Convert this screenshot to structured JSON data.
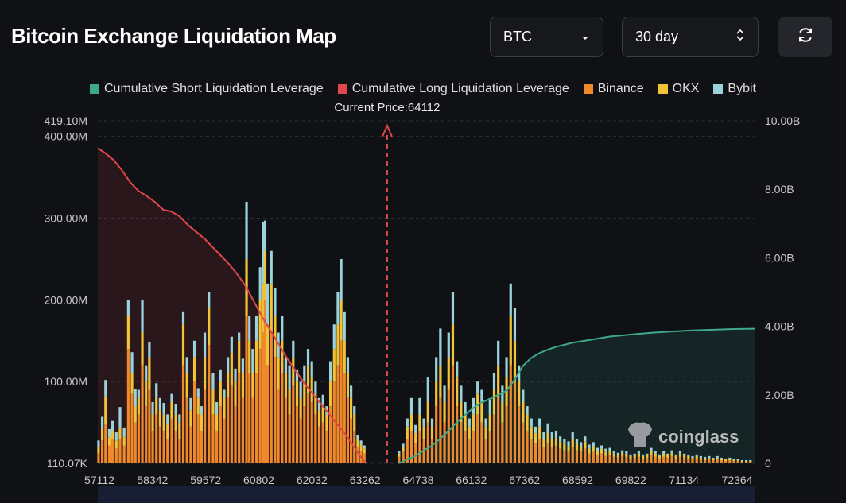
{
  "header": {
    "title": "Bitcoin Exchange Liquidation Map"
  },
  "controls": {
    "coin_value": "BTC",
    "range_value": "30 day",
    "coin_icon": "chevron-down-icon",
    "range_icon": "up-down-arrows-icon",
    "refresh_icon": "refresh-icon"
  },
  "watermark": "coinglass",
  "colors": {
    "short": "#3ea88f",
    "long": "#e0474c",
    "binance": "#f0892a",
    "okx": "#f2c237",
    "bybit": "#9ad3dc",
    "background": "#101114"
  },
  "chart_data": {
    "type": "bar",
    "legend": [
      "Cumulative Short Liquidation Leverage",
      "Cumulative Long Liquidation Leverage",
      "Binance",
      "OKX",
      "Bybit"
    ],
    "legend_position": "top-center",
    "current_price_label": "Current Price:64112",
    "current_price": 64112,
    "x_tick_labels": [
      "57112",
      "58342",
      "59572",
      "60802",
      "62032",
      "63262",
      "64738",
      "66132",
      "67362",
      "68592",
      "69822",
      "71134",
      "72364"
    ],
    "xlim": [
      57112,
      73000
    ],
    "y_left_tick_labels": [
      "419.10M",
      "400.00M",
      "300.00M",
      "200.00M",
      "100.00M",
      "110.07K"
    ],
    "y_left_ticks": [
      419.1,
      400,
      300,
      200,
      100,
      0.11
    ],
    "y_left_range_M": [
      0.11,
      419.1
    ],
    "y_right_tick_labels": [
      "10.00B",
      "8.00B",
      "6.00B",
      "4.00B",
      "2.00B",
      "0"
    ],
    "y_right_ticks": [
      10,
      8,
      6,
      4,
      2,
      0
    ],
    "y_right_range_B": [
      0,
      10
    ],
    "grid": "horizontal-dashed",
    "exchange_bars_M": [
      [
        57130,
        12,
        8,
        8
      ],
      [
        57220,
        28,
        14,
        15
      ],
      [
        57300,
        48,
        34,
        20
      ],
      [
        57390,
        22,
        10,
        10
      ],
      [
        57470,
        30,
        10,
        12
      ],
      [
        57560,
        18,
        10,
        10
      ],
      [
        57650,
        30,
        14,
        25
      ],
      [
        57750,
        22,
        10,
        12
      ],
      [
        57850,
        140,
        40,
        20
      ],
      [
        57940,
        85,
        25,
        26
      ],
      [
        58020,
        50,
        20,
        21
      ],
      [
        58100,
        60,
        20,
        10
      ],
      [
        58190,
        120,
        40,
        40
      ],
      [
        58280,
        70,
        30,
        20
      ],
      [
        58360,
        90,
        40,
        18
      ],
      [
        58440,
        40,
        20,
        15
      ],
      [
        58530,
        60,
        20,
        18
      ],
      [
        58620,
        45,
        20,
        15
      ],
      [
        58710,
        40,
        20,
        14
      ],
      [
        58800,
        30,
        18,
        12
      ],
      [
        58900,
        55,
        20,
        10
      ],
      [
        59000,
        40,
        20,
        12
      ],
      [
        59090,
        30,
        20,
        10
      ],
      [
        59180,
        120,
        50,
        15
      ],
      [
        59270,
        80,
        30,
        20
      ],
      [
        59360,
        45,
        20,
        15
      ],
      [
        59450,
        100,
        30,
        20
      ],
      [
        59540,
        60,
        20,
        12
      ],
      [
        59620,
        40,
        20,
        10
      ],
      [
        59700,
        90,
        40,
        30
      ],
      [
        59800,
        145,
        45,
        20
      ],
      [
        59900,
        60,
        30,
        20
      ],
      [
        59990,
        40,
        20,
        15
      ],
      [
        60080,
        70,
        30,
        15
      ],
      [
        60170,
        55,
        25,
        10
      ],
      [
        60260,
        80,
        30,
        20
      ],
      [
        60350,
        95,
        40,
        20
      ],
      [
        60440,
        70,
        30,
        16
      ],
      [
        60530,
        110,
        40,
        10
      ],
      [
        60620,
        80,
        30,
        18
      ],
      [
        60710,
        180,
        70,
        70
      ],
      [
        60780,
        110,
        40,
        30
      ],
      [
        60860,
        80,
        30,
        30
      ],
      [
        60950,
        110,
        40,
        30
      ],
      [
        61040,
        140,
        60,
        40
      ],
      [
        61110,
        160,
        60,
        75
      ],
      [
        61160,
        200,
        60,
        37
      ],
      [
        61220,
        120,
        50,
        50
      ],
      [
        61310,
        160,
        60,
        40
      ],
      [
        61400,
        130,
        50,
        35
      ],
      [
        61480,
        90,
        40,
        30
      ],
      [
        61570,
        110,
        40,
        30
      ],
      [
        61660,
        80,
        30,
        20
      ],
      [
        61750,
        60,
        30,
        30
      ],
      [
        61840,
        95,
        35,
        20
      ],
      [
        61930,
        70,
        30,
        15
      ],
      [
        62020,
        55,
        25,
        20
      ],
      [
        62110,
        70,
        30,
        20
      ],
      [
        62200,
        85,
        35,
        20
      ],
      [
        62290,
        75,
        30,
        20
      ],
      [
        62380,
        60,
        25,
        15
      ],
      [
        62470,
        45,
        20,
        15
      ],
      [
        62560,
        50,
        20,
        14
      ],
      [
        62650,
        40,
        20,
        10
      ],
      [
        62740,
        70,
        30,
        25
      ],
      [
        62830,
        100,
        40,
        30
      ],
      [
        62920,
        120,
        50,
        40
      ],
      [
        63000,
        150,
        50,
        50
      ],
      [
        63080,
        110,
        40,
        35
      ],
      [
        63160,
        80,
        30,
        20
      ],
      [
        63240,
        55,
        25,
        15
      ],
      [
        63320,
        40,
        20,
        10
      ],
      [
        63400,
        20,
        10,
        5
      ],
      [
        63480,
        15,
        8,
        5
      ],
      [
        63560,
        12,
        6,
        4
      ],
      [
        64400,
        8,
        4,
        3
      ],
      [
        64500,
        14,
        6,
        4
      ],
      [
        64600,
        30,
        15,
        10
      ],
      [
        64700,
        40,
        20,
        20
      ],
      [
        64800,
        25,
        12,
        10
      ],
      [
        64900,
        40,
        20,
        20
      ],
      [
        65000,
        30,
        15,
        10
      ],
      [
        65100,
        50,
        25,
        30
      ],
      [
        65200,
        30,
        15,
        10
      ],
      [
        65300,
        70,
        30,
        30
      ],
      [
        65400,
        80,
        40,
        45
      ],
      [
        65500,
        50,
        25,
        20
      ],
      [
        65600,
        90,
        40,
        30
      ],
      [
        65700,
        120,
        50,
        40
      ],
      [
        65800,
        70,
        35,
        20
      ],
      [
        65900,
        50,
        25,
        20
      ],
      [
        66000,
        40,
        20,
        15
      ],
      [
        66100,
        30,
        15,
        10
      ],
      [
        66200,
        40,
        20,
        20
      ],
      [
        66300,
        60,
        25,
        15
      ],
      [
        66400,
        50,
        25,
        15
      ],
      [
        66500,
        30,
        15,
        10
      ],
      [
        66600,
        40,
        20,
        20
      ],
      [
        66700,
        60,
        30,
        20
      ],
      [
        66800,
        80,
        40,
        30
      ],
      [
        66900,
        50,
        25,
        20
      ],
      [
        67000,
        70,
        35,
        25
      ],
      [
        67100,
        120,
        60,
        40
      ],
      [
        67200,
        100,
        50,
        40
      ],
      [
        67300,
        70,
        30,
        20
      ],
      [
        67400,
        50,
        25,
        15
      ],
      [
        67500,
        40,
        20,
        10
      ],
      [
        67600,
        30,
        15,
        10
      ],
      [
        67700,
        25,
        12,
        8
      ],
      [
        67800,
        30,
        15,
        10
      ],
      [
        67900,
        20,
        10,
        8
      ],
      [
        68000,
        25,
        12,
        12
      ],
      [
        68100,
        20,
        10,
        8
      ],
      [
        68200,
        22,
        10,
        8
      ],
      [
        68300,
        18,
        9,
        6
      ],
      [
        68400,
        16,
        8,
        6
      ],
      [
        68500,
        14,
        7,
        6
      ],
      [
        68600,
        20,
        10,
        8
      ],
      [
        68700,
        16,
        8,
        6
      ],
      [
        68800,
        14,
        7,
        5
      ],
      [
        68900,
        18,
        9,
        6
      ],
      [
        69000,
        12,
        6,
        5
      ],
      [
        69100,
        14,
        7,
        5
      ],
      [
        69200,
        10,
        5,
        4
      ],
      [
        69300,
        12,
        6,
        4
      ],
      [
        69400,
        9,
        5,
        4
      ],
      [
        69500,
        10,
        5,
        4
      ],
      [
        69600,
        8,
        4,
        3
      ],
      [
        69700,
        7,
        3,
        3
      ],
      [
        69800,
        9,
        4,
        3
      ],
      [
        69900,
        8,
        4,
        3
      ],
      [
        70000,
        6,
        3,
        2
      ],
      [
        70100,
        7,
        3,
        2
      ],
      [
        70200,
        8,
        4,
        3
      ],
      [
        70300,
        6,
        3,
        2
      ],
      [
        70400,
        7,
        3,
        2
      ],
      [
        70500,
        10,
        5,
        4
      ],
      [
        70600,
        8,
        4,
        3
      ],
      [
        70700,
        6,
        3,
        2
      ],
      [
        70800,
        8,
        4,
        3
      ],
      [
        70900,
        7,
        3,
        2
      ],
      [
        71000,
        9,
        4,
        3
      ],
      [
        71100,
        6,
        3,
        2
      ],
      [
        71200,
        8,
        4,
        3
      ],
      [
        71300,
        7,
        3,
        2
      ],
      [
        71400,
        6,
        3,
        2
      ],
      [
        71500,
        5,
        2,
        2
      ],
      [
        71600,
        6,
        3,
        2
      ],
      [
        71700,
        5,
        2,
        2
      ],
      [
        71800,
        4,
        2,
        2
      ],
      [
        71900,
        5,
        2,
        2
      ],
      [
        72000,
        4,
        2,
        1
      ],
      [
        72100,
        5,
        2,
        2
      ],
      [
        72200,
        4,
        2,
        1
      ],
      [
        72300,
        3,
        2,
        1
      ],
      [
        72400,
        4,
        2,
        1
      ],
      [
        72500,
        3,
        1,
        1
      ],
      [
        72600,
        3,
        1,
        1
      ],
      [
        72700,
        2,
        1,
        1
      ],
      [
        72800,
        2,
        1,
        1
      ],
      [
        72900,
        2,
        1,
        1
      ]
    ],
    "cumulative_long_B": [
      [
        57112,
        9.2
      ],
      [
        57300,
        9.05
      ],
      [
        57500,
        8.85
      ],
      [
        57700,
        8.55
      ],
      [
        57900,
        8.2
      ],
      [
        58100,
        7.95
      ],
      [
        58300,
        7.8
      ],
      [
        58500,
        7.62
      ],
      [
        58700,
        7.4
      ],
      [
        58900,
        7.35
      ],
      [
        59100,
        7.2
      ],
      [
        59300,
        6.95
      ],
      [
        59500,
        6.75
      ],
      [
        59700,
        6.55
      ],
      [
        59900,
        6.3
      ],
      [
        60100,
        6.05
      ],
      [
        60300,
        5.8
      ],
      [
        60500,
        5.5
      ],
      [
        60700,
        5.15
      ],
      [
        60900,
        4.7
      ],
      [
        61100,
        4.25
      ],
      [
        61300,
        3.85
      ],
      [
        61500,
        3.45
      ],
      [
        61700,
        3.05
      ],
      [
        61900,
        2.7
      ],
      [
        62100,
        2.35
      ],
      [
        62300,
        2.05
      ],
      [
        62500,
        1.75
      ],
      [
        62700,
        1.45
      ],
      [
        62900,
        1.15
      ],
      [
        63100,
        0.85
      ],
      [
        63300,
        0.5
      ],
      [
        63500,
        0.15
      ],
      [
        63600,
        0.0
      ]
    ],
    "cumulative_short_B": [
      [
        64400,
        0.0
      ],
      [
        64600,
        0.12
      ],
      [
        64800,
        0.22
      ],
      [
        65000,
        0.38
      ],
      [
        65200,
        0.52
      ],
      [
        65400,
        0.72
      ],
      [
        65600,
        0.95
      ],
      [
        65800,
        1.2
      ],
      [
        66000,
        1.42
      ],
      [
        66200,
        1.62
      ],
      [
        66400,
        1.78
      ],
      [
        66600,
        1.88
      ],
      [
        66800,
        2.0
      ],
      [
        67000,
        2.12
      ],
      [
        67200,
        2.45
      ],
      [
        67400,
        2.85
      ],
      [
        67600,
        3.08
      ],
      [
        67800,
        3.22
      ],
      [
        68000,
        3.32
      ],
      [
        68200,
        3.4
      ],
      [
        68600,
        3.52
      ],
      [
        69000,
        3.6
      ],
      [
        69500,
        3.7
      ],
      [
        70000,
        3.76
      ],
      [
        70500,
        3.81
      ],
      [
        71000,
        3.85
      ],
      [
        71500,
        3.88
      ],
      [
        72000,
        3.9
      ],
      [
        72500,
        3.92
      ],
      [
        73000,
        3.93
      ]
    ]
  }
}
